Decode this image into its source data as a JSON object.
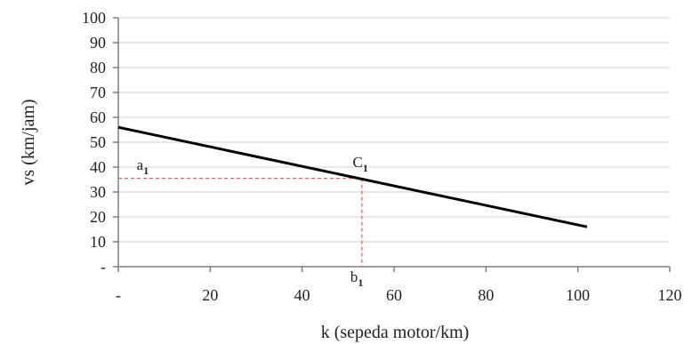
{
  "chart_data": {
    "type": "line",
    "xlabel": "k (sepeda motor/km)",
    "ylabel": "vs  (km/jam)",
    "xlim": [
      0,
      120
    ],
    "ylim": [
      0,
      100
    ],
    "x_ticks": [
      0,
      20,
      40,
      60,
      80,
      100,
      120
    ],
    "x_tick_labels": [
      "-",
      "20",
      "40",
      "60",
      "80",
      "100",
      "120"
    ],
    "y_ticks": [
      0,
      10,
      20,
      30,
      40,
      50,
      60,
      70,
      80,
      90,
      100
    ],
    "y_tick_labels": [
      "-",
      "10",
      "20",
      "30",
      "40",
      "50",
      "60",
      "70",
      "80",
      "90",
      "100"
    ],
    "grid": true,
    "series": [
      {
        "x": [
          0,
          102
        ],
        "y": [
          56,
          16
        ],
        "color": "#000000"
      }
    ],
    "reference_point": {
      "x": 53,
      "y": 35.5,
      "color": "#e06666"
    },
    "annotations": [
      {
        "id": "a1",
        "base": "a",
        "sub": "1",
        "x": 4,
        "y": 39
      },
      {
        "id": "c1",
        "base": "C",
        "sub": "1",
        "x": 51,
        "y": 40
      },
      {
        "id": "b1",
        "base": "b",
        "sub": "1",
        "x": 50.5,
        "y": -6
      }
    ]
  }
}
